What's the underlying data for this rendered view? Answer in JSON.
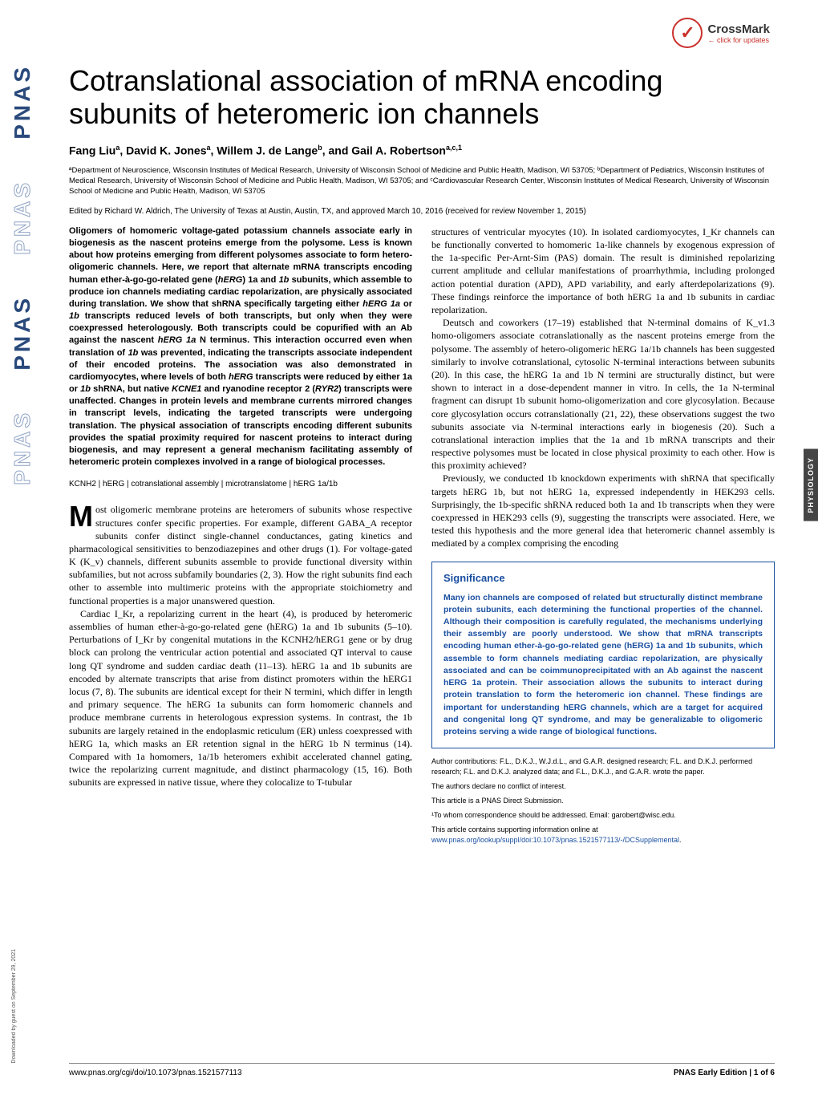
{
  "crossmark": {
    "title": "CrossMark",
    "sub": "← click for updates"
  },
  "sideLogo": "PNAS",
  "downloadNote": "Downloaded by guest on September 29, 2021",
  "sideTab": "PHYSIOLOGY",
  "title": "Cotranslational association of mRNA encoding subunits of heteromeric ion channels",
  "authors_html": "Fang Liu<sup>a</sup>, David K. Jones<sup>a</sup>, Willem J. de Lange<sup>b</sup>, and Gail A. Robertson<sup>a,c,1</sup>",
  "affiliations": "ªDepartment of Neuroscience, Wisconsin Institutes of Medical Research, University of Wisconsin School of Medicine and Public Health, Madison, WI 53705; ᵇDepartment of Pediatrics, Wisconsin Institutes of Medical Research, University of Wisconsin School of Medicine and Public Health, Madison, WI 53705; and ᶜCardiovascular Research Center, Wisconsin Institutes of Medical Research, University of Wisconsin School of Medicine and Public Health, Madison, WI 53705",
  "edited": "Edited by Richard W. Aldrich, The University of Texas at Austin, Austin, TX, and approved March 10, 2016 (received for review November 1, 2015)",
  "abstract": "Oligomers of homomeric voltage-gated potassium channels associate early in biogenesis as the nascent proteins emerge from the polysome. Less is known about how proteins emerging from different polysomes associate to form hetero-oligomeric channels. Here, we report that alternate mRNA transcripts encoding human ether-à-go-go-related gene (hERG) 1a and 1b subunits, which assemble to produce ion channels mediating cardiac repolarization, are physically associated during translation. We show that shRNA specifically targeting either hERG 1a or 1b transcripts reduced levels of both transcripts, but only when they were coexpressed heterologously. Both transcripts could be copurified with an Ab against the nascent hERG 1a N terminus. This interaction occurred even when translation of 1b was prevented, indicating the transcripts associate independent of their encoded proteins. The association was also demonstrated in cardiomyocytes, where levels of both hERG transcripts were reduced by either 1a or 1b shRNA, but native KCNE1 and ryanodine receptor 2 (RYR2) transcripts were unaffected. Changes in protein levels and membrane currents mirrored changes in transcript levels, indicating the targeted transcripts were undergoing translation. The physical association of transcripts encoding different subunits provides the spatial proximity required for nascent proteins to interact during biogenesis, and may represent a general mechanism facilitating assembly of heteromeric protein complexes involved in a range of biological processes.",
  "keywords": "KCNH2 | hERG | cotranslational assembly | microtranslatome | hERG 1a/1b",
  "body_p1": "ost oligomeric membrane proteins are heteromers of subunits whose respective structures confer specific properties. For example, different GABA_A receptor subunits confer distinct single-channel conductances, gating kinetics and pharmacological sensitivities to benzodiazepines and other drugs (1). For voltage-gated K (K_v) channels, different subunits assemble to provide functional diversity within subfamilies, but not across subfamily boundaries (2, 3). How the right subunits find each other to assemble into multimeric proteins with the appropriate stoichiometry and functional properties is a major unanswered question.",
  "body_p2": "Cardiac I_Kr, a repolarizing current in the heart (4), is produced by heteromeric assemblies of human ether-à-go-go-related gene (hERG) 1a and 1b subunits (5–10). Perturbations of I_Kr by congenital mutations in the KCNH2/hERG1 gene or by drug block can prolong the ventricular action potential and associated QT interval to cause long QT syndrome and sudden cardiac death (11–13). hERG 1a and 1b subunits are encoded by alternate transcripts that arise from distinct promoters within the hERG1 locus (7, 8). The subunits are identical except for their N termini, which differ in length and primary sequence. The hERG 1a subunits can form homomeric channels and produce membrane currents in heterologous expression systems. In contrast, the 1b subunits are largely retained in the endoplasmic reticulum (ER) unless coexpressed with hERG 1a, which masks an ER retention signal in the hERG 1b N terminus (14). Compared with 1a homomers, 1a/1b heteromers exhibit accelerated channel gating, twice the repolarizing current magnitude, and distinct pharmacology (15, 16). Both subunits are expressed in native tissue, where they colocalize to T-tubular",
  "body_r1": "structures of ventricular myocytes (10). In isolated cardiomyocytes, I_Kr channels can be functionally converted to homomeric 1a-like channels by exogenous expression of the 1a-specific Per-Arnt-Sim (PAS) domain. The result is diminished repolarizing current amplitude and cellular manifestations of proarrhythmia, including prolonged action potential duration (APD), APD variability, and early afterdepolarizations (9). These findings reinforce the importance of both hERG 1a and 1b subunits in cardiac repolarization.",
  "body_r2": "Deutsch and coworkers (17–19) established that N-terminal domains of K_v1.3 homo-oligomers associate cotranslationally as the nascent proteins emerge from the polysome. The assembly of hetero-oligomeric hERG 1a/1b channels has been suggested similarly to involve cotranslational, cytosolic N-terminal interactions between subunits (20). In this case, the hERG 1a and 1b N termini are structurally distinct, but were shown to interact in a dose-dependent manner in vitro. In cells, the 1a N-terminal fragment can disrupt 1b subunit homo-oligomerization and core glycosylation. Because core glycosylation occurs cotranslationally (21, 22), these observations suggest the two subunits associate via N-terminal interactions early in biogenesis (20). Such a cotranslational interaction implies that the 1a and 1b mRNA transcripts and their respective polysomes must be located in close physical proximity to each other. How is this proximity achieved?",
  "body_r3": "Previously, we conducted 1b knockdown experiments with shRNA that specifically targets hERG 1b, but not hERG 1a, expressed independently in HEK293 cells. Surprisingly, the 1b-specific shRNA reduced both 1a and 1b transcripts when they were coexpressed in HEK293 cells (9), suggesting the transcripts were associated. Here, we tested this hypothesis and the more general idea that heteromeric channel assembly is mediated by a complex comprising the encoding",
  "significance_title": "Significance",
  "significance": "Many ion channels are composed of related but structurally distinct membrane protein subunits, each determining the functional properties of the channel. Although their composition is carefully regulated, the mechanisms underlying their assembly are poorly understood. We show that mRNA transcripts encoding human ether-à-go-go-related gene (hERG) 1a and 1b subunits, which assemble to form channels mediating cardiac repolarization, are physically associated and can be coimmunoprecipitated with an Ab against the nascent hERG 1a protein. Their association allows the subunits to interact during protein translation to form the heteromeric ion channel. These findings are important for understanding hERG channels, which are a target for acquired and congenital long QT syndrome, and may be generalizable to oligomeric proteins serving a wide range of biological functions.",
  "fn_contrib": "Author contributions: F.L., D.K.J., W.J.d.L., and G.A.R. designed research; F.L. and D.K.J. performed research; F.L. and D.K.J. analyzed data; and F.L., D.K.J., and G.A.R. wrote the paper.",
  "fn_conflict": "The authors declare no conflict of interest.",
  "fn_direct": "This article is a PNAS Direct Submission.",
  "fn_corr": "¹To whom correspondence should be addressed. Email: garobert@wisc.edu.",
  "fn_supp_pre": "This article contains supporting information online at ",
  "fn_supp_link": "www.pnas.org/lookup/suppl/doi:10.1073/pnas.1521577113/-/DCSupplemental",
  "footer_doi": "www.pnas.org/cgi/doi/10.1073/pnas.1521577113",
  "footer_page": "PNAS Early Edition | 1 of 6",
  "colors": {
    "link": "#1a4fa0",
    "sig_border": "#1a4fa0",
    "crossmark": "#c9302c",
    "pnas": "#2a4a7c",
    "tab_bg": "#444444"
  }
}
